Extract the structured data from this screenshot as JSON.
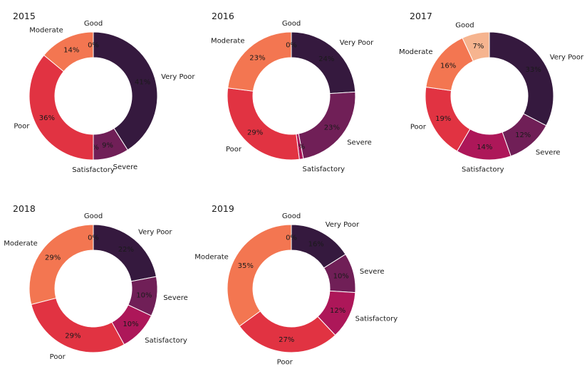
{
  "chart_data": [
    {
      "type": "pie",
      "title": "2015",
      "series": [
        {
          "name": "Very Poor",
          "pct_label": "41%",
          "value": 41,
          "color": "#35193e"
        },
        {
          "name": "Severe",
          "pct_label": "9%",
          "value": 9,
          "color": "#701f57"
        },
        {
          "name": "Satisfactory",
          "pct_label": "0%",
          "value": 0,
          "color": "#ad1759"
        },
        {
          "name": "Poor",
          "pct_label": "36%",
          "value": 36,
          "color": "#e13342"
        },
        {
          "name": "Moderate",
          "pct_label": "14%",
          "value": 14,
          "color": "#f37651"
        },
        {
          "name": "Good",
          "pct_label": "0%",
          "value": 0,
          "color": "#f6b48f"
        }
      ]
    },
    {
      "type": "pie",
      "title": "2016",
      "series": [
        {
          "name": "Very Poor",
          "pct_label": "24%",
          "value": 24,
          "color": "#35193e"
        },
        {
          "name": "Severe",
          "pct_label": "23%",
          "value": 23,
          "color": "#701f57"
        },
        {
          "name": "Satisfactory",
          "pct_label": "1%",
          "value": 1,
          "color": "#ad1759"
        },
        {
          "name": "Poor",
          "pct_label": "29%",
          "value": 29,
          "color": "#e13342"
        },
        {
          "name": "Moderate",
          "pct_label": "23%",
          "value": 23,
          "color": "#f37651"
        },
        {
          "name": "Good",
          "pct_label": "0%",
          "value": 0,
          "color": "#f6b48f"
        }
      ]
    },
    {
      "type": "pie",
      "title": "2017",
      "series": [
        {
          "name": "Very Poor",
          "pct_label": "33%",
          "value": 33,
          "color": "#35193e"
        },
        {
          "name": "Severe",
          "pct_label": "12%",
          "value": 12,
          "color": "#701f57"
        },
        {
          "name": "Satisfactory",
          "pct_label": "14%",
          "value": 14,
          "color": "#ad1759"
        },
        {
          "name": "Poor",
          "pct_label": "19%",
          "value": 19,
          "color": "#e13342"
        },
        {
          "name": "Moderate",
          "pct_label": "16%",
          "value": 16,
          "color": "#f37651"
        },
        {
          "name": "Good",
          "pct_label": "7%",
          "value": 7,
          "color": "#f6b48f"
        }
      ]
    },
    {
      "type": "pie",
      "title": "2018",
      "series": [
        {
          "name": "Very Poor",
          "pct_label": "22%",
          "value": 22,
          "color": "#35193e"
        },
        {
          "name": "Severe",
          "pct_label": "10%",
          "value": 10,
          "color": "#701f57"
        },
        {
          "name": "Satisfactory",
          "pct_label": "10%",
          "value": 10,
          "color": "#ad1759"
        },
        {
          "name": "Poor",
          "pct_label": "29%",
          "value": 29,
          "color": "#e13342"
        },
        {
          "name": "Moderate",
          "pct_label": "29%",
          "value": 29,
          "color": "#f37651"
        },
        {
          "name": "Good",
          "pct_label": "0%",
          "value": 0,
          "color": "#f6b48f"
        }
      ]
    },
    {
      "type": "pie",
      "title": "2019",
      "series": [
        {
          "name": "Very Poor",
          "pct_label": "16%",
          "value": 16,
          "color": "#35193e"
        },
        {
          "name": "Severe",
          "pct_label": "10%",
          "value": 10,
          "color": "#701f57"
        },
        {
          "name": "Satisfactory",
          "pct_label": "12%",
          "value": 12,
          "color": "#ad1759"
        },
        {
          "name": "Poor",
          "pct_label": "27%",
          "value": 27,
          "color": "#e13342"
        },
        {
          "name": "Moderate",
          "pct_label": "35%",
          "value": 35,
          "color": "#f37651"
        },
        {
          "name": "Good",
          "pct_label": "0%",
          "value": 0,
          "color": "#f6b48f"
        }
      ]
    }
  ]
}
